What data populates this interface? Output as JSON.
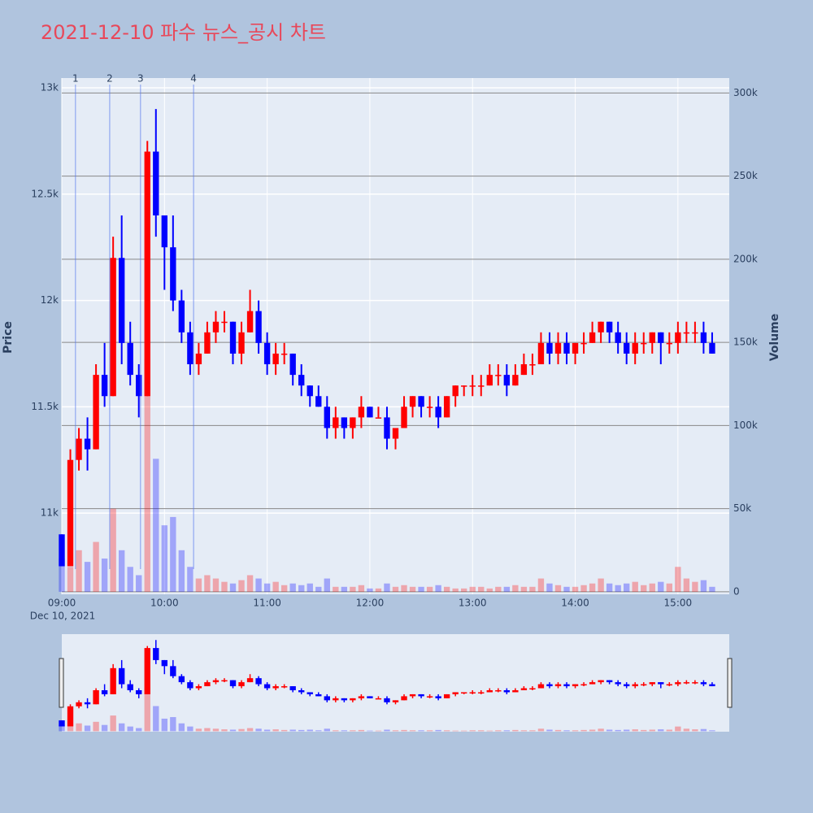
{
  "chart_data": {
    "type": "candlestick",
    "title": "2021-12-10 파수 뉴스_공시 차트",
    "ylabel": "Price",
    "y2label": "Volume",
    "x_date_label": "Dec 10, 2021",
    "increasing_color": "#ff0000",
    "decreasing_color": "#0000ff",
    "xlim": [
      "09:00",
      "15:30"
    ],
    "xticks": [
      "09:00",
      "10:00",
      "11:00",
      "12:00",
      "13:00",
      "14:00",
      "15:00"
    ],
    "ylim": [
      10618,
      13046
    ],
    "yticks": [
      {
        "value": 11000,
        "label": "11k"
      },
      {
        "value": 11500,
        "label": "11.5k"
      },
      {
        "value": 12000,
        "label": "12k"
      },
      {
        "value": 12500,
        "label": "12.5k"
      },
      {
        "value": 13000,
        "label": "13k"
      }
    ],
    "y2lim": [
      -1500,
      309000
    ],
    "y2ticks": [
      0,
      {
        "value": 50000,
        "label": "50k"
      },
      {
        "value": 100000,
        "label": "100k"
      },
      {
        "value": 150000,
        "label": "150k"
      },
      {
        "value": 200000,
        "label": "200k"
      },
      {
        "value": 250000,
        "label": "250k"
      },
      {
        "value": 300000,
        "label": "300k"
      }
    ],
    "annotations": [
      {
        "x": "09:08",
        "text": "1"
      },
      {
        "x": "09:28",
        "text": "2"
      },
      {
        "x": "09:46",
        "text": "3"
      },
      {
        "x": "10:17",
        "text": "4"
      }
    ],
    "x": [
      "09:00",
      "09:05",
      "09:10",
      "09:15",
      "09:20",
      "09:25",
      "09:30",
      "09:35",
      "09:40",
      "09:45",
      "09:50",
      "09:55",
      "10:00",
      "10:05",
      "10:10",
      "10:15",
      "10:20",
      "10:25",
      "10:30",
      "10:35",
      "10:40",
      "10:45",
      "10:50",
      "10:55",
      "11:00",
      "11:05",
      "11:10",
      "11:15",
      "11:20",
      "11:25",
      "11:30",
      "11:35",
      "11:40",
      "11:45",
      "11:50",
      "11:55",
      "12:00",
      "12:05",
      "12:10",
      "12:15",
      "12:20",
      "12:25",
      "12:30",
      "12:35",
      "12:40",
      "12:45",
      "12:50",
      "12:55",
      "13:00",
      "13:05",
      "13:10",
      "13:15",
      "13:20",
      "13:25",
      "13:30",
      "13:35",
      "13:40",
      "13:45",
      "13:50",
      "13:55",
      "14:00",
      "14:05",
      "14:10",
      "14:15",
      "14:20",
      "14:25",
      "14:30",
      "14:35",
      "14:40",
      "14:45",
      "14:50",
      "14:55",
      "15:00",
      "15:05",
      "15:10",
      "15:15",
      "15:20"
    ],
    "open": [
      10900,
      10750,
      11250,
      11350,
      11300,
      11650,
      11550,
      12200,
      11800,
      11650,
      11550,
      12700,
      12400,
      12250,
      12000,
      11850,
      11700,
      11750,
      11850,
      11900,
      11900,
      11750,
      11850,
      11950,
      11800,
      11700,
      11750,
      11750,
      11650,
      11600,
      11550,
      11500,
      11400,
      11450,
      11400,
      11450,
      11500,
      11450,
      11450,
      11350,
      11400,
      11500,
      11550,
      11500,
      11500,
      11450,
      11550,
      11600,
      11600,
      11600,
      11600,
      11650,
      11650,
      11600,
      11650,
      11700,
      11700,
      11800,
      11750,
      11800,
      11750,
      11800,
      11800,
      11850,
      11900,
      11850,
      11800,
      11750,
      11800,
      11800,
      11850,
      11800,
      11800,
      11850,
      11850,
      11850,
      11800
    ],
    "high": [
      10900,
      11300,
      11400,
      11450,
      11700,
      11800,
      12300,
      12400,
      11900,
      11700,
      12750,
      12900,
      12400,
      12400,
      12050,
      11900,
      11800,
      11900,
      11950,
      11950,
      11900,
      11900,
      12050,
      12000,
      11850,
      11800,
      11800,
      11750,
      11700,
      11600,
      11600,
      11550,
      11500,
      11450,
      11450,
      11550,
      11500,
      11500,
      11500,
      11400,
      11550,
      11550,
      11550,
      11550,
      11550,
      11550,
      11600,
      11600,
      11650,
      11650,
      11700,
      11700,
      11700,
      11700,
      11750,
      11750,
      11850,
      11850,
      11850,
      11850,
      11800,
      11850,
      11900,
      11900,
      11900,
      11900,
      11850,
      11850,
      11850,
      11850,
      11850,
      11850,
      11900,
      11900,
      11900,
      11900,
      11850
    ],
    "low": [
      10750,
      10750,
      11200,
      11200,
      11300,
      11500,
      11550,
      11700,
      11600,
      11450,
      11550,
      12300,
      12050,
      11950,
      11800,
      11650,
      11650,
      11750,
      11800,
      11850,
      11700,
      11700,
      11850,
      11750,
      11650,
      11650,
      11700,
      11600,
      11550,
      11500,
      11500,
      11350,
      11350,
      11350,
      11350,
      11400,
      11450,
      11450,
      11300,
      11300,
      11400,
      11450,
      11450,
      11450,
      11400,
      11450,
      11500,
      11550,
      11550,
      11550,
      11600,
      11600,
      11550,
      11600,
      11650,
      11650,
      11700,
      11700,
      11700,
      11700,
      11700,
      11750,
      11800,
      11800,
      11800,
      11750,
      11700,
      11700,
      11750,
      11750,
      11700,
      11750,
      11750,
      11800,
      11800,
      11750,
      11750
    ],
    "close": [
      10750,
      11250,
      11350,
      11300,
      11650,
      11550,
      12200,
      11800,
      11650,
      11550,
      12700,
      12400,
      12250,
      12000,
      11850,
      11700,
      11750,
      11850,
      11900,
      11900,
      11750,
      11850,
      11950,
      11800,
      11700,
      11750,
      11750,
      11650,
      11600,
      11550,
      11500,
      11400,
      11450,
      11400,
      11450,
      11500,
      11450,
      11450,
      11350,
      11400,
      11500,
      11550,
      11500,
      11500,
      11450,
      11550,
      11600,
      11600,
      11600,
      11600,
      11650,
      11650,
      11600,
      11650,
      11700,
      11700,
      11800,
      11750,
      11800,
      11750,
      11800,
      11800,
      11850,
      11900,
      11850,
      11800,
      11750,
      11800,
      11800,
      11850,
      11800,
      11800,
      11850,
      11850,
      11850,
      11800,
      11750
    ],
    "volume": [
      20000,
      15000,
      25000,
      18000,
      30000,
      20000,
      50000,
      25000,
      15000,
      10000,
      140000,
      80000,
      40000,
      45000,
      25000,
      15000,
      8000,
      10000,
      8000,
      6000,
      5000,
      7000,
      10000,
      8000,
      5000,
      6000,
      4000,
      5000,
      4000,
      5000,
      3000,
      8000,
      3000,
      3000,
      3000,
      4000,
      2000,
      2000,
      5000,
      3000,
      4000,
      3000,
      3000,
      3000,
      4000,
      3000,
      2000,
      2000,
      3000,
      3000,
      2000,
      3000,
      3000,
      4000,
      3000,
      3000,
      8000,
      5000,
      4000,
      3000,
      3000,
      4000,
      5000,
      8000,
      5000,
      4000,
      5000,
      6000,
      4000,
      5000,
      6000,
      5000,
      15000,
      8000,
      6000,
      7000,
      3000
    ]
  }
}
